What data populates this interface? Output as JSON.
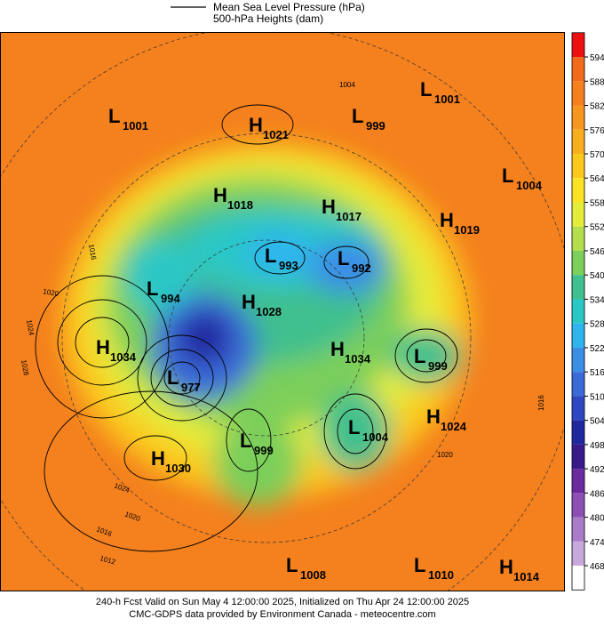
{
  "legend": {
    "items": [
      "Mean Sea Level Pressure (hPa)",
      "500-hPa Heights (dam)"
    ]
  },
  "centers": [
    {
      "letter": "L",
      "value": "1001"
    },
    {
      "letter": "H",
      "value": "1021"
    },
    {
      "letter": "L",
      "value": "999"
    },
    {
      "letter": "L",
      "value": "1001"
    },
    {
      "letter": "L",
      "value": "1004"
    },
    {
      "letter": "H",
      "value": "1018"
    },
    {
      "letter": "H",
      "value": "1017"
    },
    {
      "letter": "H",
      "value": "1019"
    },
    {
      "letter": "L",
      "value": "993"
    },
    {
      "letter": "L",
      "value": "992"
    },
    {
      "letter": "L",
      "value": "994"
    },
    {
      "letter": "H",
      "value": "1028"
    },
    {
      "letter": "H",
      "value": "1034"
    },
    {
      "letter": "H",
      "value": "1034"
    },
    {
      "letter": "L",
      "value": "999"
    },
    {
      "letter": "L",
      "value": "977"
    },
    {
      "letter": "L",
      "value": "1004"
    },
    {
      "letter": "H",
      "value": "1024"
    },
    {
      "letter": "L",
      "value": "999"
    },
    {
      "letter": "H",
      "value": "1030"
    },
    {
      "letter": "L",
      "value": "1008"
    },
    {
      "letter": "L",
      "value": "1010"
    },
    {
      "letter": "H",
      "value": "1014"
    }
  ],
  "contour_labels": [
    "1004",
    "1016",
    "1020",
    "1024",
    "1028",
    "1024",
    "1020",
    "1016",
    "1012",
    "1016",
    "1020"
  ],
  "colorbar": {
    "ticks": [
      594,
      588,
      582,
      576,
      570,
      564,
      558,
      552,
      546,
      540,
      534,
      528,
      522,
      516,
      510,
      504,
      498,
      492,
      486,
      480,
      474,
      468
    ],
    "colors": [
      "#ee1111",
      "#f26a1c",
      "#f4801e",
      "#f7961f",
      "#f9ae1f",
      "#fbc91e",
      "#fbe323",
      "#e6ec3a",
      "#b5de4c",
      "#7bcf5a",
      "#3fc08e",
      "#29c7c6",
      "#2fb5ee",
      "#3a8ee6",
      "#3a6ad8",
      "#2f46c2",
      "#2028a0",
      "#3a1a8a",
      "#6a2a9e",
      "#8c4fb4",
      "#a97bc8",
      "#c9a9dc",
      "#ffffff"
    ]
  },
  "footer": [
    "240-h Fcst Valid on Sun May  4 12:00:00 2025, Initialized on Thu Apr 24 12:00:00 2025",
    "CMC-GDPS data provided by Environment Canada - meteocentre.com"
  ]
}
